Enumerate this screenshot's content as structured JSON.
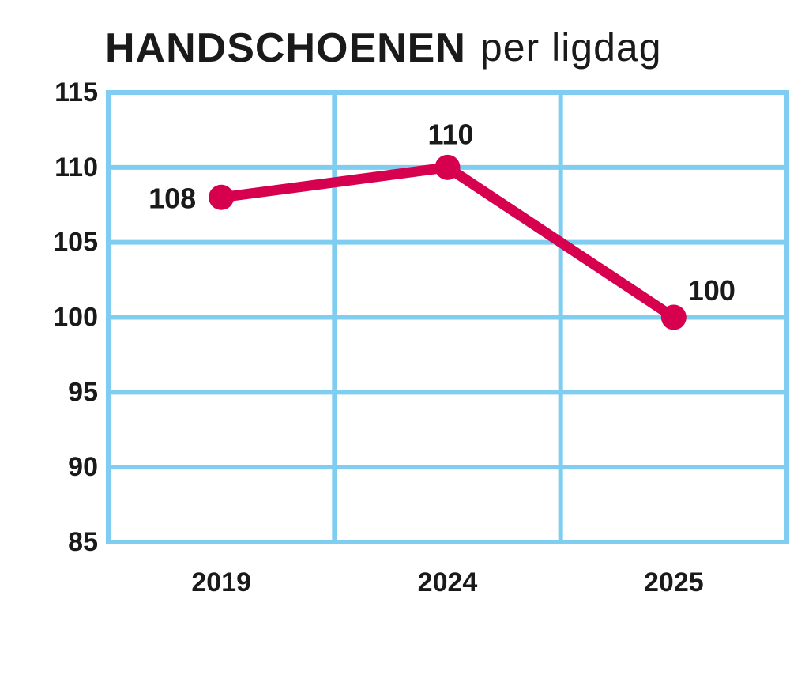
{
  "chart_data": {
    "type": "line",
    "title": "HANDSCHOENEN",
    "subtitle": "per ligdag",
    "categories": [
      "2019",
      "2024",
      "2025"
    ],
    "series": [
      {
        "name": "HANDSCHOENEN per ligdag",
        "color": "#d6004f",
        "values": [
          108,
          110,
          100
        ]
      }
    ],
    "ylim": [
      85,
      115
    ],
    "yticks": [
      85,
      90,
      95,
      100,
      105,
      110,
      115
    ],
    "grid": true,
    "grid_color": "#7fcdf0"
  }
}
